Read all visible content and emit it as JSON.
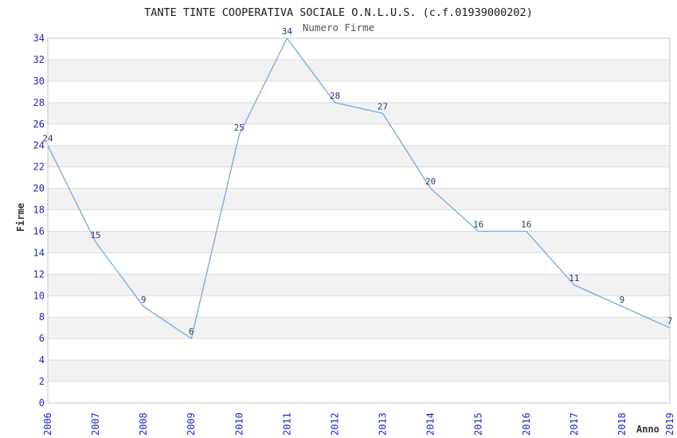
{
  "chart_data": {
    "type": "line",
    "title": "TANTE TINTE COOPERATIVA SOCIALE O.N.L.U.S. (c.f.01939000202)",
    "subtitle": "Numero Firme",
    "xlabel": "Anno",
    "ylabel": "Firme",
    "x": [
      2006,
      2007,
      2008,
      2009,
      2010,
      2011,
      2012,
      2013,
      2014,
      2015,
      2016,
      2017,
      2018,
      2019
    ],
    "values": [
      24,
      15,
      9,
      6,
      25,
      34,
      28,
      27,
      20,
      16,
      16,
      11,
      9,
      7
    ],
    "ylim": [
      0,
      34
    ],
    "ytick_step": 2,
    "grid": true,
    "legend": "none",
    "point_labels_shown": true,
    "colors": {
      "line": "#7aaee0",
      "tick_label": "#2323cc",
      "point_label": "#32327e",
      "band": "#f2f2f2",
      "gridline": "#dcdcdc",
      "plot_border": "#c8c8c8",
      "title": "#1a1a1a",
      "subtitle": "#555555",
      "axis_title": "#333333"
    }
  }
}
